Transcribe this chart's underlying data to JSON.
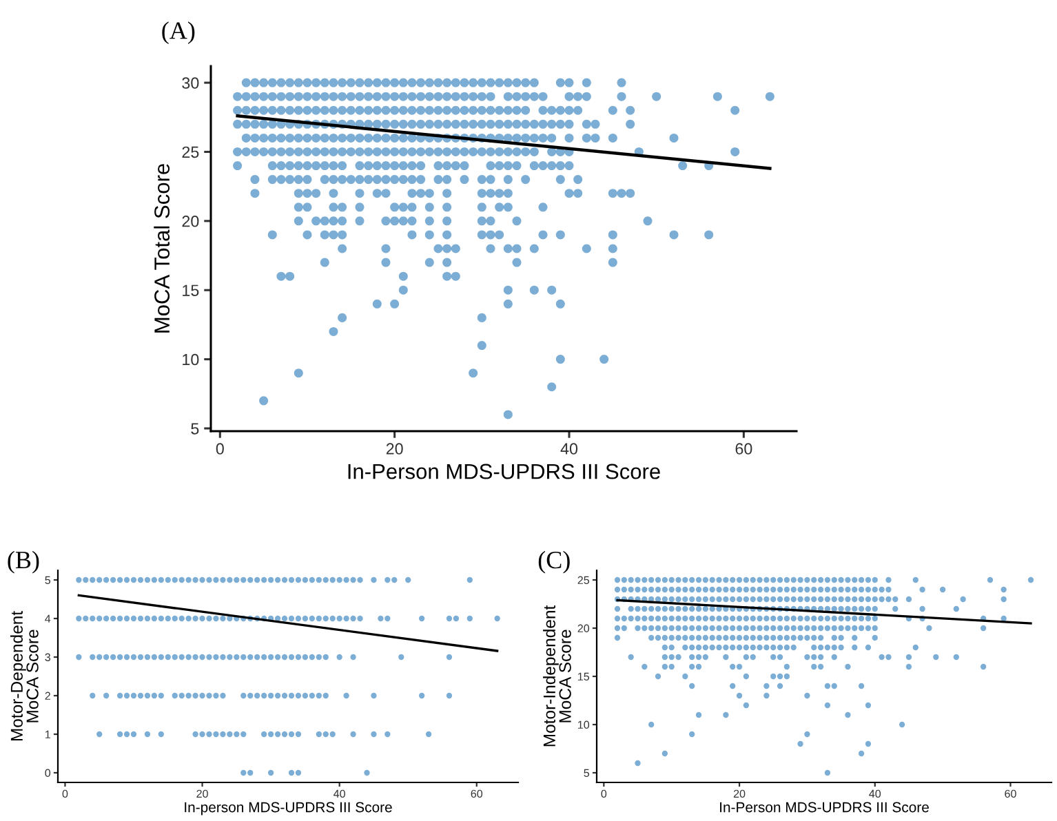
{
  "chart_data": [
    {
      "type": "scatter",
      "title": "(A)",
      "xlabel": "In-Person MDS-UPDRS III Score",
      "ylabel": "MoCA Total Score",
      "xlim": [
        -1.05,
        66.05
      ],
      "ylim": [
        4.8,
        31.2
      ],
      "xticks": [
        0,
        20,
        40,
        60
      ],
      "yticks": [
        5,
        10,
        15,
        20,
        25,
        30
      ],
      "series": [
        {
          "marker": "circle",
          "color": "#2b7bba",
          "x": [
            3,
            4,
            5,
            6,
            7,
            8,
            9,
            10,
            11,
            12,
            13,
            14,
            15,
            16,
            17,
            18,
            19,
            20,
            21,
            22,
            23,
            24,
            25,
            26,
            27,
            28,
            29,
            30,
            31,
            32,
            33,
            34,
            35,
            36,
            39,
            40,
            42,
            46,
            2,
            3,
            4,
            5,
            6,
            7,
            8,
            9,
            10,
            11,
            12,
            13,
            14,
            15,
            16,
            17,
            18,
            19,
            20,
            21,
            22,
            23,
            24,
            25,
            26,
            27,
            28,
            29,
            30,
            31,
            33,
            34,
            35,
            36,
            37,
            40,
            41,
            42,
            46,
            50,
            57,
            63,
            2,
            3,
            4,
            5,
            6,
            7,
            8,
            9,
            10,
            11,
            12,
            13,
            14,
            15,
            16,
            17,
            18,
            19,
            20,
            21,
            22,
            23,
            24,
            25,
            26,
            27,
            28,
            29,
            30,
            31,
            32,
            33,
            34,
            35,
            37,
            38,
            39,
            40,
            41,
            45,
            47,
            59,
            2,
            3,
            4,
            5,
            6,
            7,
            8,
            9,
            10,
            11,
            12,
            13,
            14,
            15,
            16,
            17,
            18,
            19,
            20,
            21,
            22,
            23,
            24,
            25,
            26,
            27,
            28,
            29,
            30,
            31,
            32,
            33,
            34,
            35,
            36,
            37,
            38,
            39,
            40,
            42,
            43,
            47,
            3,
            4,
            5,
            6,
            7,
            8,
            9,
            10,
            11,
            12,
            13,
            14,
            15,
            16,
            17,
            18,
            19,
            20,
            21,
            22,
            23,
            24,
            25,
            26,
            27,
            28,
            29,
            30,
            31,
            32,
            33,
            34,
            35,
            36,
            37,
            38,
            40,
            42,
            43,
            45,
            52,
            2,
            3,
            4,
            5,
            6,
            7,
            8,
            9,
            10,
            11,
            12,
            13,
            14,
            15,
            16,
            17,
            18,
            19,
            20,
            21,
            22,
            23,
            24,
            25,
            26,
            27,
            28,
            29,
            30,
            31,
            32,
            33,
            34,
            35,
            36,
            38,
            39,
            40,
            48,
            59,
            2,
            6,
            7,
            8,
            9,
            10,
            11,
            12,
            13,
            14,
            16,
            17,
            18,
            19,
            20,
            21,
            22,
            23,
            25,
            26,
            27,
            28,
            31,
            32,
            33,
            34,
            36,
            37,
            38,
            39,
            40,
            53,
            56,
            4,
            6,
            7,
            8,
            9,
            10,
            12,
            13,
            14,
            15,
            16,
            17,
            18,
            19,
            20,
            21,
            22,
            23,
            25,
            26,
            28,
            30,
            31,
            33,
            35,
            39,
            41,
            4,
            9,
            10,
            11,
            13,
            16,
            18,
            19,
            22,
            23,
            24,
            26,
            30,
            31,
            32,
            33,
            40,
            41,
            45,
            46,
            47,
            9,
            10,
            13,
            14,
            16,
            20,
            21,
            22,
            24,
            26,
            30,
            32,
            33,
            37,
            9,
            11,
            12,
            13,
            14,
            16,
            19,
            20,
            21,
            22,
            24,
            26,
            30,
            31,
            34,
            49,
            6,
            10,
            12,
            13,
            14,
            22,
            24,
            26,
            30,
            31,
            32,
            37,
            39,
            45,
            52,
            56,
            14,
            19,
            25,
            26,
            27,
            31,
            33,
            34,
            36,
            42,
            45,
            12,
            19,
            24,
            26,
            34,
            45,
            7,
            8,
            21,
            26,
            27,
            21,
            33,
            36,
            38,
            18,
            20,
            33,
            39,
            14,
            30,
            13,
            30,
            39,
            44,
            9,
            29,
            38,
            5,
            33
          ],
          "values": [
            30,
            30,
            30,
            30,
            30,
            30,
            30,
            30,
            30,
            30,
            30,
            30,
            30,
            30,
            30,
            30,
            30,
            30,
            30,
            30,
            30,
            30,
            30,
            30,
            30,
            30,
            30,
            30,
            30,
            30,
            30,
            30,
            30,
            30,
            30,
            30,
            30,
            30,
            29,
            29,
            29,
            29,
            29,
            29,
            29,
            29,
            29,
            29,
            29,
            29,
            29,
            29,
            29,
            29,
            29,
            29,
            29,
            29,
            29,
            29,
            29,
            29,
            29,
            29,
            29,
            29,
            29,
            29,
            29,
            29,
            29,
            29,
            29,
            29,
            29,
            29,
            29,
            29,
            29,
            29,
            28,
            28,
            28,
            28,
            28,
            28,
            28,
            28,
            28,
            28,
            28,
            28,
            28,
            28,
            28,
            28,
            28,
            28,
            28,
            28,
            28,
            28,
            28,
            28,
            28,
            28,
            28,
            28,
            28,
            28,
            28,
            28,
            28,
            28,
            28,
            28,
            28,
            28,
            28,
            28,
            28,
            28,
            27,
            27,
            27,
            27,
            27,
            27,
            27,
            27,
            27,
            27,
            27,
            27,
            27,
            27,
            27,
            27,
            27,
            27,
            27,
            27,
            27,
            27,
            27,
            27,
            27,
            27,
            27,
            27,
            27,
            27,
            27,
            27,
            27,
            27,
            27,
            27,
            27,
            27,
            27,
            27,
            27,
            27,
            26,
            26,
            26,
            26,
            26,
            26,
            26,
            26,
            26,
            26,
            26,
            26,
            26,
            26,
            26,
            26,
            26,
            26,
            26,
            26,
            26,
            26,
            26,
            26,
            26,
            26,
            26,
            26,
            26,
            26,
            26,
            26,
            26,
            26,
            26,
            26,
            26,
            26,
            26,
            26,
            26,
            25,
            25,
            25,
            25,
            25,
            25,
            25,
            25,
            25,
            25,
            25,
            25,
            25,
            25,
            25,
            25,
            25,
            25,
            25,
            25,
            25,
            25,
            25,
            25,
            25,
            25,
            25,
            25,
            25,
            25,
            25,
            25,
            25,
            25,
            25,
            25,
            25,
            25,
            25,
            25,
            24,
            24,
            24,
            24,
            24,
            24,
            24,
            24,
            24,
            24,
            24,
            24,
            24,
            24,
            24,
            24,
            24,
            24,
            24,
            24,
            24,
            24,
            24,
            24,
            24,
            24,
            24,
            24,
            24,
            24,
            24,
            24,
            24,
            23,
            23,
            23,
            23,
            23,
            23,
            23,
            23,
            23,
            23,
            23,
            23,
            23,
            23,
            23,
            23,
            23,
            23,
            23,
            23,
            23,
            23,
            23,
            23,
            23,
            23,
            23,
            22,
            22,
            22,
            22,
            22,
            22,
            22,
            22,
            22,
            22,
            22,
            22,
            22,
            22,
            22,
            22,
            22,
            22,
            22,
            22,
            22,
            21,
            21,
            21,
            21,
            21,
            21,
            21,
            21,
            21,
            21,
            21,
            21,
            21,
            21,
            20,
            20,
            20,
            20,
            20,
            20,
            20,
            20,
            20,
            20,
            20,
            20,
            20,
            20,
            20,
            20,
            19,
            19,
            19,
            19,
            19,
            19,
            19,
            19,
            19,
            19,
            19,
            19,
            19,
            19,
            19,
            19,
            18,
            18,
            18,
            18,
            18,
            18,
            18,
            18,
            18,
            18,
            18,
            17,
            17,
            17,
            17,
            17,
            17,
            16,
            16,
            16,
            16,
            16,
            15,
            15,
            15,
            15,
            14,
            14,
            14,
            14,
            13,
            13,
            12,
            11,
            10,
            10,
            9,
            9,
            8,
            7,
            6
          ]
        },
        {
          "type": "line",
          "color": "#000000",
          "x": [
            2,
            63
          ],
          "values": [
            27.6,
            23.8
          ]
        }
      ]
    },
    {
      "type": "scatter",
      "title": "(B)",
      "xlabel": "In-person MDS-UPDRS III Score",
      "ylabel": "Motor-Dependent\nMoCA Score",
      "xlim": [
        -1.05,
        66.05
      ],
      "ylim": [
        -0.25,
        5.25
      ],
      "xticks": [
        0,
        20,
        40,
        60
      ],
      "yticks": [
        0,
        1,
        2,
        3,
        4,
        5
      ],
      "series": [
        {
          "marker": "circle",
          "color": "#2b7bba",
          "x": [
            2,
            3,
            4,
            5,
            6,
            7,
            8,
            9,
            10,
            11,
            12,
            13,
            14,
            15,
            16,
            17,
            18,
            19,
            20,
            21,
            22,
            23,
            24,
            25,
            26,
            27,
            28,
            29,
            30,
            31,
            32,
            33,
            34,
            35,
            36,
            37,
            38,
            39,
            40,
            41,
            42,
            43,
            45,
            47,
            48,
            50,
            59,
            2,
            3,
            4,
            5,
            6,
            7,
            8,
            9,
            10,
            11,
            12,
            13,
            14,
            15,
            16,
            17,
            18,
            19,
            20,
            21,
            22,
            23,
            24,
            25,
            26,
            27,
            28,
            29,
            30,
            31,
            32,
            33,
            34,
            35,
            36,
            37,
            38,
            39,
            40,
            41,
            42,
            43,
            46,
            47,
            52,
            56,
            57,
            59,
            63,
            2,
            4,
            5,
            6,
            7,
            8,
            9,
            10,
            11,
            12,
            13,
            14,
            15,
            16,
            17,
            18,
            19,
            20,
            21,
            22,
            23,
            24,
            25,
            26,
            27,
            28,
            29,
            30,
            31,
            32,
            33,
            34,
            35,
            36,
            37,
            38,
            40,
            42,
            49,
            56,
            4,
            6,
            8,
            9,
            10,
            11,
            12,
            13,
            14,
            16,
            17,
            18,
            19,
            20,
            21,
            22,
            23,
            26,
            27,
            28,
            29,
            30,
            31,
            32,
            33,
            34,
            35,
            36,
            37,
            38,
            41,
            45,
            52,
            56,
            5,
            8,
            9,
            10,
            12,
            14,
            19,
            20,
            21,
            22,
            23,
            24,
            25,
            26,
            29,
            30,
            31,
            32,
            33,
            34,
            37,
            38,
            39,
            42,
            45,
            47,
            53,
            26,
            27,
            30,
            33,
            34,
            44
          ],
          "values": [
            5,
            5,
            5,
            5,
            5,
            5,
            5,
            5,
            5,
            5,
            5,
            5,
            5,
            5,
            5,
            5,
            5,
            5,
            5,
            5,
            5,
            5,
            5,
            5,
            5,
            5,
            5,
            5,
            5,
            5,
            5,
            5,
            5,
            5,
            5,
            5,
            5,
            5,
            5,
            5,
            5,
            5,
            5,
            5,
            5,
            5,
            5,
            4,
            4,
            4,
            4,
            4,
            4,
            4,
            4,
            4,
            4,
            4,
            4,
            4,
            4,
            4,
            4,
            4,
            4,
            4,
            4,
            4,
            4,
            4,
            4,
            4,
            4,
            4,
            4,
            4,
            4,
            4,
            4,
            4,
            4,
            4,
            4,
            4,
            4,
            4,
            4,
            4,
            4,
            4,
            4,
            4,
            4,
            4,
            4,
            4,
            3,
            3,
            3,
            3,
            3,
            3,
            3,
            3,
            3,
            3,
            3,
            3,
            3,
            3,
            3,
            3,
            3,
            3,
            3,
            3,
            3,
            3,
            3,
            3,
            3,
            3,
            3,
            3,
            3,
            3,
            3,
            3,
            3,
            3,
            3,
            3,
            3,
            3,
            3,
            3,
            2,
            2,
            2,
            2,
            2,
            2,
            2,
            2,
            2,
            2,
            2,
            2,
            2,
            2,
            2,
            2,
            2,
            2,
            2,
            2,
            2,
            2,
            2,
            2,
            2,
            2,
            2,
            2,
            2,
            2,
            2,
            2,
            2,
            2,
            1,
            1,
            1,
            1,
            1,
            1,
            1,
            1,
            1,
            1,
            1,
            1,
            1,
            1,
            1,
            1,
            1,
            1,
            1,
            1,
            1,
            1,
            1,
            1,
            1,
            1,
            1,
            0,
            0,
            0,
            0,
            0,
            0
          ]
        },
        {
          "type": "line",
          "color": "#000000",
          "x": [
            2,
            63
          ],
          "values": [
            4.6,
            3.16
          ]
        }
      ]
    },
    {
      "type": "scatter",
      "title": "(C)",
      "xlabel": "In-Person MDS-UPDRS III Score",
      "ylabel": "Motor-Independent\nMoCA Score",
      "xlim": [
        -1.05,
        66.05
      ],
      "ylim": [
        4,
        26
      ],
      "xticks": [
        0,
        20,
        40,
        60
      ],
      "yticks": [
        5,
        10,
        15,
        20,
        25
      ],
      "series": [
        {
          "marker": "circle",
          "color": "#2b7bba",
          "x": [
            2,
            3,
            4,
            5,
            6,
            7,
            8,
            9,
            10,
            11,
            12,
            13,
            14,
            15,
            16,
            17,
            18,
            19,
            20,
            21,
            22,
            23,
            24,
            25,
            26,
            27,
            28,
            29,
            30,
            31,
            32,
            33,
            34,
            35,
            36,
            37,
            38,
            39,
            40,
            42,
            46,
            57,
            63,
            2,
            3,
            4,
            5,
            6,
            7,
            8,
            9,
            10,
            11,
            12,
            13,
            14,
            15,
            16,
            17,
            18,
            19,
            20,
            21,
            22,
            23,
            24,
            25,
            26,
            27,
            28,
            29,
            30,
            31,
            32,
            33,
            34,
            35,
            36,
            37,
            38,
            39,
            40,
            41,
            42,
            47,
            50,
            59,
            2,
            3,
            4,
            5,
            6,
            7,
            8,
            9,
            10,
            11,
            12,
            13,
            14,
            15,
            16,
            17,
            18,
            19,
            20,
            21,
            22,
            23,
            24,
            25,
            26,
            27,
            28,
            29,
            30,
            31,
            32,
            33,
            34,
            35,
            36,
            37,
            38,
            39,
            40,
            41,
            42,
            43,
            45,
            53,
            59,
            2,
            4,
            5,
            6,
            7,
            8,
            9,
            10,
            11,
            12,
            13,
            14,
            15,
            16,
            17,
            18,
            19,
            20,
            21,
            22,
            23,
            24,
            25,
            26,
            27,
            28,
            29,
            30,
            31,
            32,
            33,
            34,
            35,
            36,
            37,
            38,
            39,
            40,
            43,
            47,
            52,
            2,
            3,
            4,
            5,
            6,
            7,
            8,
            9,
            10,
            11,
            12,
            13,
            14,
            15,
            16,
            17,
            18,
            19,
            20,
            21,
            22,
            23,
            24,
            25,
            26,
            27,
            28,
            29,
            30,
            31,
            32,
            33,
            34,
            35,
            36,
            37,
            38,
            39,
            40,
            45,
            47,
            56,
            59,
            2,
            3,
            5,
            6,
            7,
            8,
            9,
            10,
            11,
            12,
            13,
            14,
            15,
            16,
            17,
            18,
            19,
            20,
            21,
            22,
            23,
            24,
            25,
            26,
            27,
            28,
            29,
            30,
            31,
            32,
            33,
            34,
            35,
            36,
            37,
            38,
            39,
            40,
            48,
            56,
            2,
            7,
            8,
            9,
            10,
            11,
            12,
            13,
            14,
            15,
            16,
            17,
            18,
            19,
            20,
            21,
            22,
            23,
            24,
            25,
            26,
            27,
            28,
            29,
            30,
            31,
            32,
            34,
            35,
            37,
            40,
            9,
            10,
            12,
            13,
            14,
            15,
            16,
            17,
            18,
            19,
            20,
            21,
            22,
            23,
            24,
            25,
            26,
            27,
            28,
            31,
            32,
            33,
            34,
            35,
            37,
            39,
            46,
            4,
            9,
            10,
            11,
            13,
            14,
            15,
            18,
            21,
            22,
            25,
            26,
            30,
            31,
            32,
            34,
            41,
            42,
            45,
            49,
            52,
            6,
            9,
            10,
            13,
            14,
            19,
            20,
            27,
            31,
            32,
            36,
            45,
            56,
            8,
            12,
            21,
            25,
            26,
            27,
            13,
            19,
            24,
            26,
            33,
            34,
            38,
            20,
            24,
            30,
            21,
            33,
            39,
            14,
            18,
            36,
            7,
            44,
            13,
            30,
            29,
            39,
            9,
            38,
            5,
            33
          ],
          "values": [
            25,
            25,
            25,
            25,
            25,
            25,
            25,
            25,
            25,
            25,
            25,
            25,
            25,
            25,
            25,
            25,
            25,
            25,
            25,
            25,
            25,
            25,
            25,
            25,
            25,
            25,
            25,
            25,
            25,
            25,
            25,
            25,
            25,
            25,
            25,
            25,
            25,
            25,
            25,
            25,
            25,
            25,
            25,
            24,
            24,
            24,
            24,
            24,
            24,
            24,
            24,
            24,
            24,
            24,
            24,
            24,
            24,
            24,
            24,
            24,
            24,
            24,
            24,
            24,
            24,
            24,
            24,
            24,
            24,
            24,
            24,
            24,
            24,
            24,
            24,
            24,
            24,
            24,
            24,
            24,
            24,
            24,
            24,
            24,
            24,
            24,
            24,
            23,
            23,
            23,
            23,
            23,
            23,
            23,
            23,
            23,
            23,
            23,
            23,
            23,
            23,
            23,
            23,
            23,
            23,
            23,
            23,
            23,
            23,
            23,
            23,
            23,
            23,
            23,
            23,
            23,
            23,
            23,
            23,
            23,
            23,
            23,
            23,
            23,
            23,
            23,
            23,
            23,
            23,
            23,
            23,
            23,
            22,
            22,
            22,
            22,
            22,
            22,
            22,
            22,
            22,
            22,
            22,
            22,
            22,
            22,
            22,
            22,
            22,
            22,
            22,
            22,
            22,
            22,
            22,
            22,
            22,
            22,
            22,
            22,
            22,
            22,
            22,
            22,
            22,
            22,
            22,
            22,
            22,
            22,
            22,
            22,
            22,
            21,
            21,
            21,
            21,
            21,
            21,
            21,
            21,
            21,
            21,
            21,
            21,
            21,
            21,
            21,
            21,
            21,
            21,
            21,
            21,
            21,
            21,
            21,
            21,
            21,
            21,
            21,
            21,
            21,
            21,
            21,
            21,
            21,
            21,
            21,
            21,
            21,
            21,
            21,
            21,
            21,
            21,
            21,
            20,
            20,
            20,
            20,
            20,
            20,
            20,
            20,
            20,
            20,
            20,
            20,
            20,
            20,
            20,
            20,
            20,
            20,
            20,
            20,
            20,
            20,
            20,
            20,
            20,
            20,
            20,
            20,
            20,
            20,
            20,
            20,
            20,
            20,
            20,
            20,
            20,
            20,
            20,
            20,
            19,
            19,
            19,
            19,
            19,
            19,
            19,
            19,
            19,
            19,
            19,
            19,
            19,
            19,
            19,
            19,
            19,
            19,
            19,
            19,
            19,
            19,
            19,
            19,
            19,
            19,
            19,
            19,
            19,
            19,
            19,
            18,
            18,
            18,
            18,
            18,
            18,
            18,
            18,
            18,
            18,
            18,
            18,
            18,
            18,
            18,
            18,
            18,
            18,
            18,
            18,
            18,
            18,
            18,
            18,
            18,
            18,
            18,
            17,
            17,
            17,
            17,
            17,
            17,
            17,
            17,
            17,
            17,
            17,
            17,
            17,
            17,
            17,
            17,
            17,
            17,
            17,
            17,
            17,
            16,
            16,
            16,
            16,
            16,
            16,
            16,
            16,
            16,
            16,
            16,
            16,
            16,
            15,
            15,
            15,
            15,
            15,
            15,
            14,
            14,
            14,
            14,
            14,
            14,
            14,
            13,
            13,
            13,
            12,
            12,
            12,
            11,
            11,
            11,
            10,
            10,
            9,
            9,
            8,
            8,
            7,
            7,
            6,
            5
          ]
        },
        {
          "type": "line",
          "color": "#000000",
          "x": [
            2,
            63
          ],
          "values": [
            22.9,
            20.5
          ]
        }
      ]
    }
  ]
}
